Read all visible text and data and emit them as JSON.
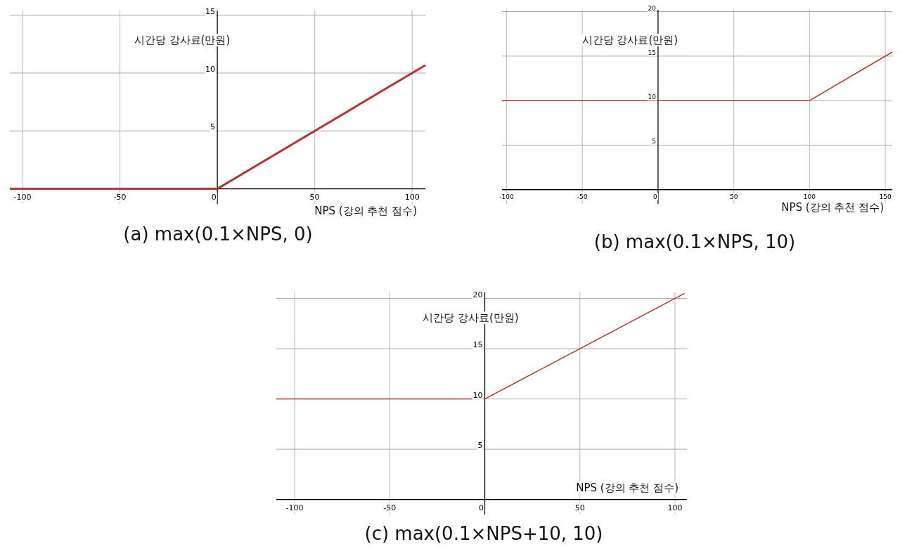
{
  "chart_data": [
    {
      "type": "line",
      "title": "(a) max(0.1×NPS, 0)",
      "xlabel": "NPS (강의 추천 점수)",
      "ylabel": "시간당 강사료(만원)",
      "grid": true,
      "xlim": [
        -106.5,
        106.8
      ],
      "ylim": [
        -1.3,
        15.4
      ],
      "xticks": [
        -100,
        -50,
        0,
        50,
        100
      ],
      "yticks": [
        5,
        10,
        15
      ],
      "series": [
        {
          "color": "#b0372e",
          "x": [
            -106.5,
            0,
            106.8
          ],
          "values": [
            0,
            0,
            10.68
          ]
        }
      ]
    },
    {
      "type": "line",
      "title": "(b) max(0.1×NPS, 10)",
      "xlabel": "NPS (강의 추천 점수)",
      "ylabel": "시간당 강사료(만원)",
      "grid": true,
      "xlim": [
        -103,
        154.6
      ],
      "ylim": [
        -1.6,
        20.2
      ],
      "xticks": [
        -100,
        -50,
        0,
        50,
        100,
        150
      ],
      "yticks": [
        5,
        10,
        15,
        20
      ],
      "series": [
        {
          "color": "#b0372e",
          "x": [
            -103,
            100,
            154.6
          ],
          "values": [
            10,
            10,
            15.46
          ]
        }
      ]
    },
    {
      "type": "line",
      "title": "(c) max(0.1×NPS+10, 10)",
      "xlabel": "NPS (강의 추천 점수)",
      "ylabel": "시간당 강사료(만원)",
      "grid": true,
      "xlim": [
        -109.6,
        106.3
      ],
      "ylim": [
        -1.5,
        20.6
      ],
      "xticks": [
        -100,
        -50,
        0,
        50,
        100
      ],
      "yticks": [
        5,
        10,
        15,
        20
      ],
      "series": [
        {
          "color": "#b0372e",
          "x": [
            -109.6,
            0,
            105
          ],
          "values": [
            10,
            10,
            20.5
          ]
        }
      ]
    }
  ]
}
